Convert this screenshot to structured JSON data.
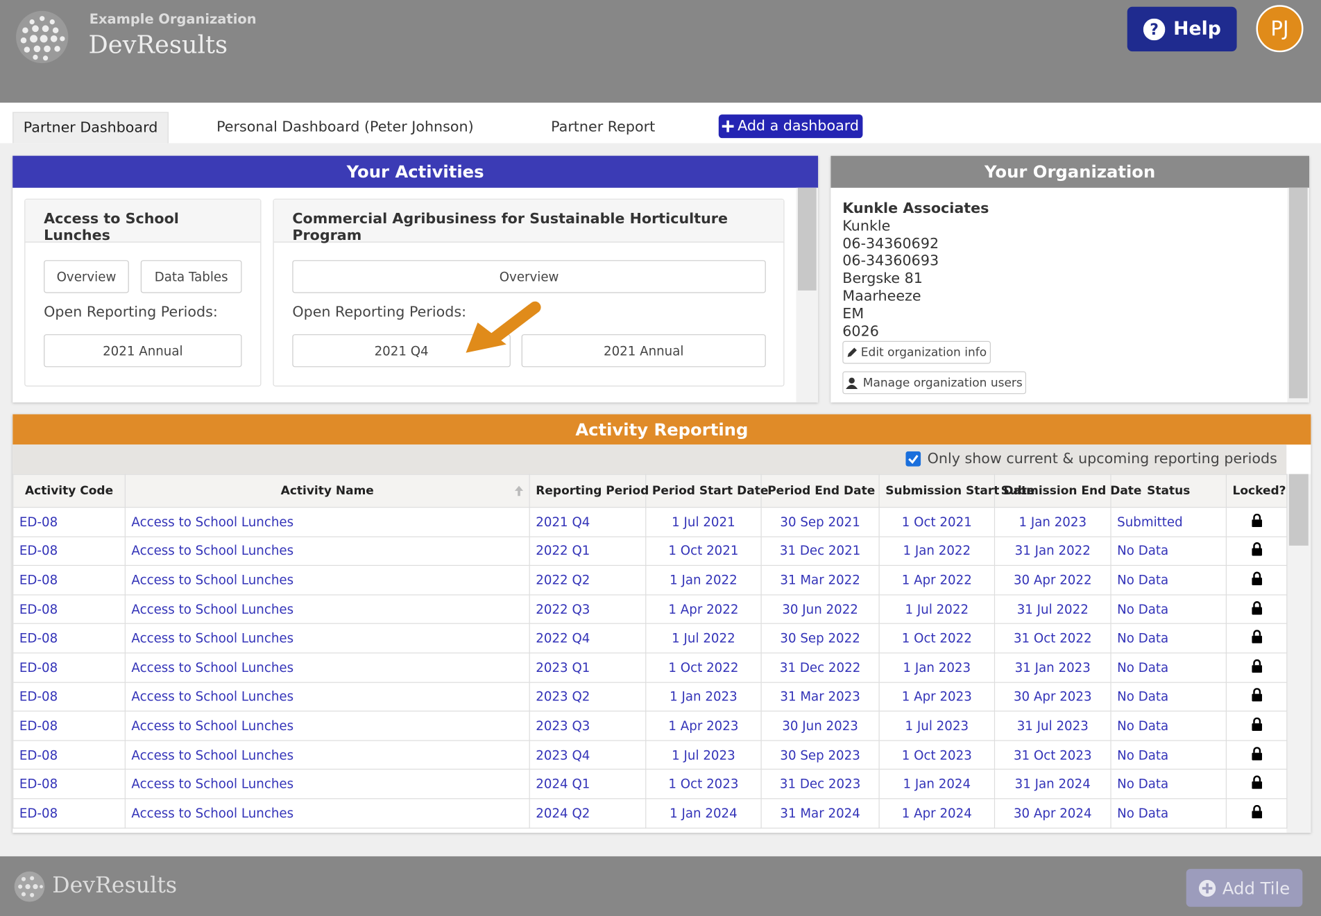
{
  "header": {
    "organization": "Example Organization",
    "app_name": "DevResults",
    "help": "Help",
    "avatar": "PJ"
  },
  "tabs": {
    "items": [
      "Partner Dashboard",
      "Personal Dashboard (Peter Johnson)",
      "Partner Report"
    ],
    "add": "Add a dashboard"
  },
  "activities": {
    "title": "Your Activities",
    "cards": [
      {
        "title": "Access to School Lunches",
        "buttons": [
          "Overview",
          "Data Tables"
        ],
        "periods_label": "Open Reporting Periods:",
        "periods": [
          "2021 Annual"
        ]
      },
      {
        "title": "Commercial Agribusiness for Sustainable Horticulture Program",
        "buttons": [
          "Overview"
        ],
        "periods_label": "Open Reporting Periods:",
        "periods": [
          "2021 Q4",
          "2021 Annual"
        ]
      }
    ]
  },
  "organization": {
    "title": "Your Organization",
    "name": "Kunkle Associates",
    "lines": [
      "Kunkle",
      "06-34360692",
      "06-34360693",
      "Bergske 81",
      "Maarheeze",
      "EM",
      "6026"
    ],
    "buttons": [
      "Edit organization info",
      "Manage organization users"
    ]
  },
  "reporting": {
    "title": "Activity Reporting",
    "filter": "Only show current & upcoming reporting periods",
    "columns": [
      "Activity Code",
      "Activity Name",
      "Reporting Period",
      "Period Start Date",
      "Period End Date",
      "Submission Start Date",
      "Submission End Date",
      "Status",
      "Locked?"
    ],
    "rows": [
      [
        "ED-08",
        "Access to School Lunches",
        "2021 Q4",
        "1 Jul 2021",
        "30 Sep 2021",
        "1 Oct 2021",
        "1 Jan 2023",
        "Submitted"
      ],
      [
        "ED-08",
        "Access to School Lunches",
        "2022 Q1",
        "1 Oct 2021",
        "31 Dec 2021",
        "1 Jan 2022",
        "31 Jan 2022",
        "No Data"
      ],
      [
        "ED-08",
        "Access to School Lunches",
        "2022 Q2",
        "1 Jan 2022",
        "31 Mar 2022",
        "1 Apr 2022",
        "30 Apr 2022",
        "No Data"
      ],
      [
        "ED-08",
        "Access to School Lunches",
        "2022 Q3",
        "1 Apr 2022",
        "30 Jun 2022",
        "1 Jul 2022",
        "31 Jul 2022",
        "No Data"
      ],
      [
        "ED-08",
        "Access to School Lunches",
        "2022 Q4",
        "1 Jul 2022",
        "30 Sep 2022",
        "1 Oct 2022",
        "31 Oct 2022",
        "No Data"
      ],
      [
        "ED-08",
        "Access to School Lunches",
        "2023 Q1",
        "1 Oct 2022",
        "31 Dec 2022",
        "1 Jan 2023",
        "31 Jan 2023",
        "No Data"
      ],
      [
        "ED-08",
        "Access to School Lunches",
        "2023 Q2",
        "1 Jan 2023",
        "31 Mar 2023",
        "1 Apr 2023",
        "30 Apr 2023",
        "No Data"
      ],
      [
        "ED-08",
        "Access to School Lunches",
        "2023 Q3",
        "1 Apr 2023",
        "30 Jun 2023",
        "1 Jul 2023",
        "31 Jul 2023",
        "No Data"
      ],
      [
        "ED-08",
        "Access to School Lunches",
        "2023 Q4",
        "1 Jul 2023",
        "30 Sep 2023",
        "1 Oct 2023",
        "31 Oct 2023",
        "No Data"
      ],
      [
        "ED-08",
        "Access to School Lunches",
        "2024 Q1",
        "1 Oct 2023",
        "31 Dec 2023",
        "1 Jan 2024",
        "31 Jan 2024",
        "No Data"
      ],
      [
        "ED-08",
        "Access to School Lunches",
        "2024 Q2",
        "1 Jan 2024",
        "31 Mar 2024",
        "1 Apr 2024",
        "30 Apr 2024",
        "No Data"
      ]
    ]
  },
  "footer": {
    "app_name": "DevResults",
    "add_tile": "Add Tile"
  }
}
